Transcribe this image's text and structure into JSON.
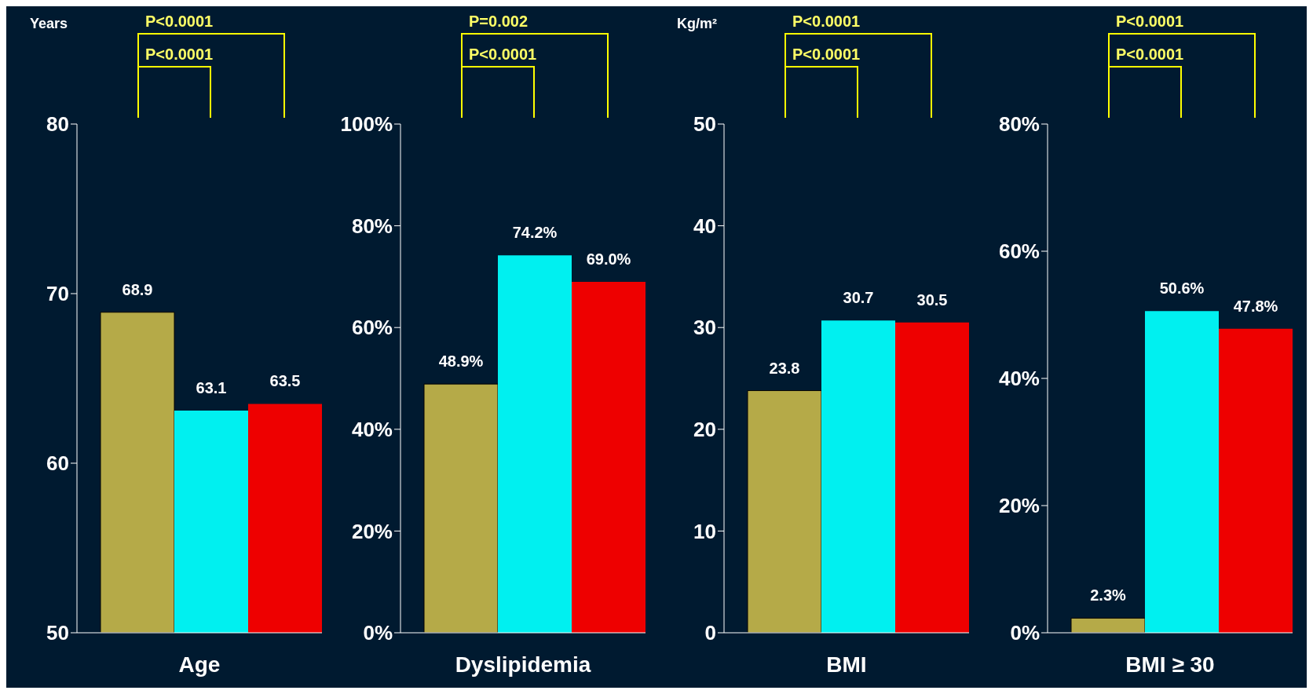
{
  "chart_data": [
    {
      "type": "bar",
      "xlabel": "Age",
      "ylabel": "Years",
      "categories": [
        null,
        null,
        null
      ],
      "values": [
        68.9,
        63.1,
        63.5
      ],
      "colors": [
        "#b5aa48",
        "#00f0f0",
        "#ee0000"
      ],
      "ylim": [
        50,
        80
      ],
      "yticks": [
        50,
        60,
        70,
        80
      ],
      "data_labels": true,
      "annotations": [
        "P<0.0001",
        "P<0.0001"
      ]
    },
    {
      "type": "bar",
      "xlabel": "Dyslipidemia",
      "categories": [
        null,
        null,
        null
      ],
      "values": [
        48.9,
        74.2,
        69.0
      ],
      "value_labels": [
        "48.9%",
        "74.2%",
        "69.0%"
      ],
      "colors": [
        "#b5aa48",
        "#00f0f0",
        "#ee0000"
      ],
      "ylim": [
        0,
        100
      ],
      "yticks": [
        {
          "value": 0,
          "label": "0%"
        },
        {
          "value": 20,
          "label": "20%"
        },
        {
          "value": 40,
          "label": "40%"
        },
        {
          "value": 60,
          "label": "60%"
        },
        {
          "value": 80,
          "label": "80%"
        },
        {
          "value": 100,
          "label": "100%"
        }
      ],
      "annotations": [
        "P=0.002",
        "P<0.0001"
      ]
    },
    {
      "type": "bar",
      "xlabel": "BMI",
      "ylabel": "Kg/m²",
      "categories": [
        null,
        null,
        null
      ],
      "values": [
        23.8,
        30.7,
        30.5
      ],
      "colors": [
        "#b5aa48",
        "#00f0f0",
        "#ee0000"
      ],
      "ylim": [
        0,
        50
      ],
      "yticks": [
        0,
        10,
        20,
        30,
        40,
        50
      ],
      "data_labels": true,
      "annotations": [
        "P<0.0001",
        "P<0.0001"
      ]
    },
    {
      "type": "bar",
      "xlabel": "BMI ≥ 30",
      "categories": [
        null,
        null,
        null
      ],
      "values": [
        2.3,
        50.6,
        47.8
      ],
      "value_labels": [
        "2.3%",
        "50.6%",
        "47.8%"
      ],
      "colors": [
        "#b5aa48",
        "#00f0f0",
        "#ee0000"
      ],
      "ylim": [
        0,
        80
      ],
      "yticks": [
        {
          "value": 0,
          "label": "0%"
        },
        {
          "value": 20,
          "label": "20%"
        },
        {
          "value": 40,
          "label": "40%"
        },
        {
          "value": 60,
          "label": "60%"
        },
        {
          "value": 80,
          "label": "80%"
        }
      ],
      "annotations": [
        "P<0.0001",
        "P<0.0001"
      ]
    }
  ]
}
